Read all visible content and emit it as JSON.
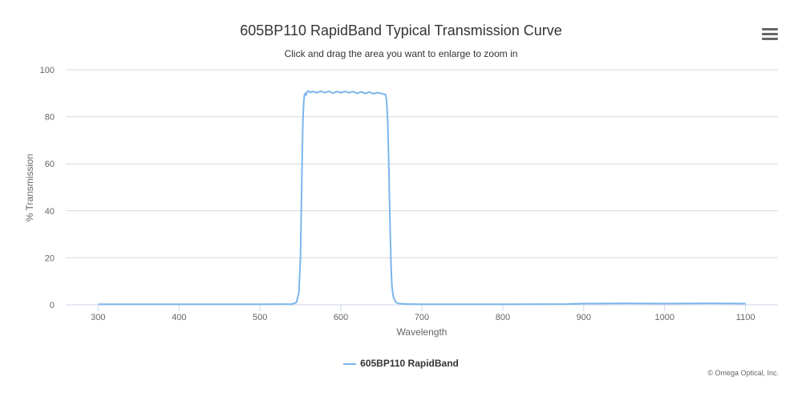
{
  "chart_data": {
    "type": "line",
    "title": "605BP110 RapidBand Typical Transmission Curve",
    "subtitle": "Click and drag the area you want to enlarge to zoom in",
    "xlabel": "Wavelength",
    "ylabel": "% Transmission",
    "xlim": [
      260,
      1140
    ],
    "ylim": [
      0,
      100
    ],
    "x_ticks": [
      300,
      400,
      500,
      600,
      700,
      800,
      900,
      1000,
      1100
    ],
    "y_ticks": [
      0,
      20,
      40,
      60,
      80,
      100
    ],
    "grid": "horizontal",
    "legend_position": "bottom-center",
    "series": [
      {
        "name": "605BP110 RapidBand",
        "color": "#7cb5ec",
        "x": [
          300,
          400,
          500,
          540,
          545,
          548,
          550,
          551,
          552,
          553,
          554,
          555,
          556,
          557,
          558,
          560,
          562,
          565,
          570,
          575,
          580,
          585,
          590,
          595,
          600,
          605,
          610,
          615,
          620,
          625,
          630,
          635,
          640,
          645,
          650,
          653,
          655,
          656,
          657,
          658,
          659,
          660,
          661,
          662,
          663,
          665,
          668,
          672,
          680,
          700,
          800,
          880,
          900,
          950,
          1000,
          1050,
          1100
        ],
        "y": [
          0.2,
          0.2,
          0.2,
          0.3,
          1,
          5,
          20,
          40,
          60,
          78,
          86,
          89.5,
          90,
          89.2,
          90.5,
          91,
          90.3,
          90.8,
          90.2,
          90.9,
          90.3,
          90.8,
          90.1,
          90.7,
          90.2,
          90.8,
          90.2,
          90.7,
          90,
          90.6,
          89.9,
          90.5,
          89.8,
          90.3,
          89.9,
          89.6,
          89.5,
          88,
          84,
          76,
          62,
          45,
          30,
          16,
          8,
          3,
          1,
          0.5,
          0.3,
          0.2,
          0.2,
          0.3,
          0.5,
          0.6,
          0.5,
          0.6,
          0.5
        ]
      }
    ]
  },
  "credits": "© Omega Optical, Inc."
}
